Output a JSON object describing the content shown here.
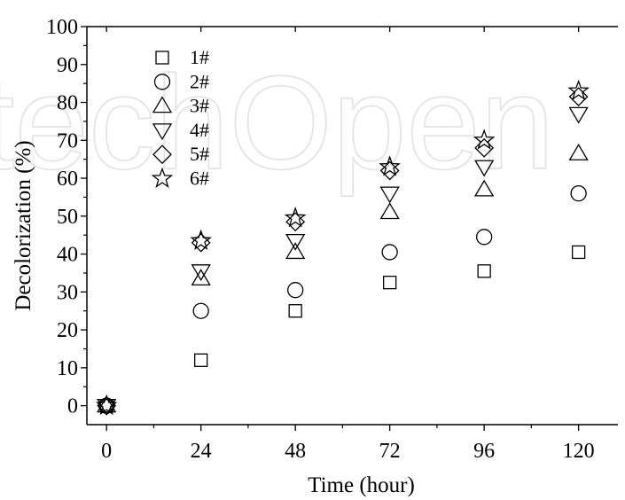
{
  "chart_data": {
    "type": "scatter",
    "xlabel": "Time (hour)",
    "ylabel": "Decolorization (%)",
    "x": [
      0,
      24,
      48,
      72,
      96,
      120
    ],
    "xticks": [
      "0",
      "24",
      "48",
      "72",
      "96",
      "120"
    ],
    "yticks": [
      "0",
      "10",
      "20",
      "30",
      "40",
      "50",
      "60",
      "70",
      "80",
      "90",
      "100"
    ],
    "xlim": [
      -5,
      130
    ],
    "ylim": [
      -5,
      100
    ],
    "grid": false,
    "legend_position": "top-left",
    "series": [
      {
        "name": "1#",
        "marker": "square",
        "values": [
          0,
          12,
          25,
          32.5,
          35.5,
          40.5
        ]
      },
      {
        "name": "2#",
        "marker": "circle",
        "values": [
          0,
          25,
          30.5,
          40.5,
          44.5,
          56
        ]
      },
      {
        "name": "3#",
        "marker": "triangle-up",
        "values": [
          0,
          33.5,
          40.5,
          51,
          57,
          66.5
        ]
      },
      {
        "name": "4#",
        "marker": "triangle-down",
        "values": [
          0,
          35.5,
          43.5,
          56,
          63,
          77
        ]
      },
      {
        "name": "5#",
        "marker": "diamond",
        "values": [
          0,
          43,
          48.5,
          62,
          68,
          81.5
        ]
      },
      {
        "name": "6#",
        "marker": "star",
        "values": [
          0,
          43.5,
          49.5,
          63,
          70,
          83
        ]
      }
    ]
  },
  "watermark": "techOpen"
}
